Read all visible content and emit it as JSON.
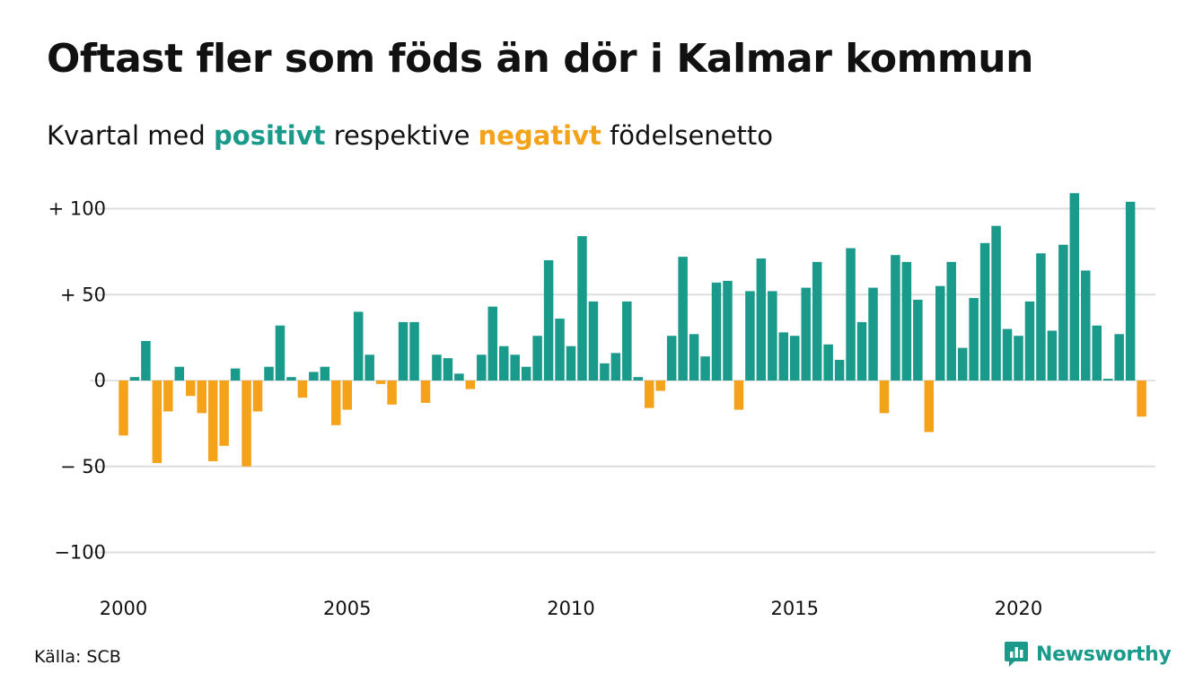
{
  "title": "Oftast fler som föds än dör i Kalmar kommun",
  "subtitle": {
    "prefix": "Kvartal med",
    "positive": "positivt",
    "middle": "respektive",
    "negative": "negativt",
    "suffix": "födelsenetto"
  },
  "source": "Källa: SCB",
  "logo_text": "Newsworthy",
  "colors": {
    "positive": "#1a9a8a",
    "negative": "#f5a21b",
    "grid": "#dddddd",
    "text": "#111111"
  },
  "chart_data": {
    "type": "bar",
    "x_start": 2000.0,
    "x_step": 0.25,
    "xticks": [
      2000,
      2005,
      2010,
      2015,
      2020
    ],
    "yticks": [
      100,
      50,
      0,
      -50,
      -100
    ],
    "ytick_labels": [
      "+ 100",
      "+  50",
      "0",
      "− 50",
      "−100"
    ],
    "ylim": [
      -100,
      100
    ],
    "grid": true,
    "values": [
      -32,
      2,
      23,
      -48,
      -18,
      8,
      -9,
      -19,
      -47,
      -38,
      7,
      -50,
      -18,
      8,
      32,
      2,
      -10,
      5,
      8,
      -26,
      -17,
      40,
      15,
      -2,
      -14,
      34,
      34,
      -13,
      15,
      13,
      4,
      -5,
      15,
      43,
      20,
      15,
      8,
      26,
      70,
      36,
      20,
      84,
      46,
      10,
      16,
      46,
      2,
      -16,
      -6,
      26,
      72,
      27,
      14,
      57,
      58,
      -17,
      52,
      71,
      52,
      28,
      26,
      54,
      69,
      21,
      12,
      77,
      34,
      54,
      -19,
      73,
      69,
      47,
      -30,
      55,
      69,
      19,
      48,
      80,
      90,
      30,
      26,
      46,
      74,
      29,
      79,
      109,
      64,
      32,
      1,
      27,
      104,
      -21
    ]
  }
}
